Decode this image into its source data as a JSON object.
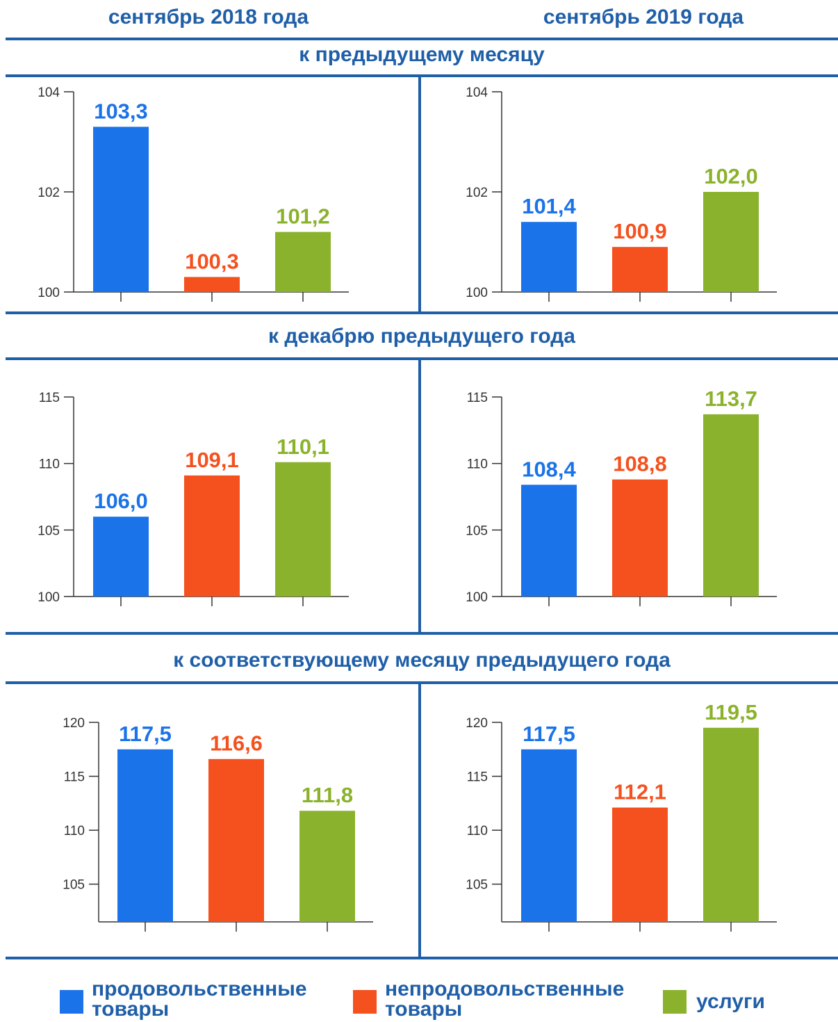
{
  "colors": {
    "food": "#1a73e8",
    "nonfood": "#f4511e",
    "services": "#8bb22c",
    "line": "#1f5fa8"
  },
  "columns": [
    "сентябрь 2018 года",
    "сентябрь 2019 года"
  ],
  "sections": [
    "к предыдущему месяцу",
    "к декабрю предыдущего года",
    "к соответствующему месяцу предыдущего года"
  ],
  "legend": {
    "food": [
      "продовольственные",
      "товары"
    ],
    "nonfood": [
      "непродовольственные",
      "товары"
    ],
    "services": [
      "услуги"
    ]
  },
  "chart_data": [
    {
      "type": "bar",
      "title": "сентябрь 2018 года — к предыдущему месяцу",
      "series": [
        {
          "values": [
            103.3,
            100.3,
            101.2
          ]
        }
      ],
      "labels": [
        "103,3",
        "100,3",
        "101,2"
      ],
      "ylim": [
        100,
        104
      ],
      "yticks": [
        100,
        102,
        104
      ]
    },
    {
      "type": "bar",
      "title": "сентябрь 2019 года — к предыдущему месяцу",
      "series": [
        {
          "values": [
            101.4,
            100.9,
            102.0
          ]
        }
      ],
      "labels": [
        "101,4",
        "100,9",
        "102,0"
      ],
      "ylim": [
        100,
        104
      ],
      "yticks": [
        100,
        102,
        104
      ]
    },
    {
      "type": "bar",
      "title": "сентябрь 2018 года — к декабрю предыдущего года",
      "series": [
        {
          "values": [
            106.0,
            109.1,
            110.1
          ]
        }
      ],
      "labels": [
        "106,0",
        "109,1",
        "110,1"
      ],
      "ylim": [
        100,
        115
      ],
      "yticks": [
        100,
        105,
        110,
        115
      ]
    },
    {
      "type": "bar",
      "title": "сентябрь 2019 года — к декабрю предыдущего года",
      "series": [
        {
          "values": [
            108.4,
            108.8,
            113.7
          ]
        }
      ],
      "labels": [
        "108,4",
        "108,8",
        "113,7"
      ],
      "ylim": [
        100,
        115
      ],
      "yticks": [
        100,
        105,
        110,
        115
      ]
    },
    {
      "type": "bar",
      "title": "сентябрь 2018 года — к соответствующему месяцу предыдущего года",
      "series": [
        {
          "values": [
            117.5,
            116.6,
            111.8
          ]
        }
      ],
      "labels": [
        "117,5",
        "116,6",
        "111,8"
      ],
      "ylim": [
        101.5,
        120
      ],
      "yticks": [
        105,
        110,
        115,
        120
      ]
    },
    {
      "type": "bar",
      "title": "сентябрь 2019 года — к соответствующему месяцу предыдущего года",
      "series": [
        {
          "values": [
            117.5,
            112.1,
            119.5
          ]
        }
      ],
      "labels": [
        "117,5",
        "112,1",
        "119,5"
      ],
      "ylim": [
        101.5,
        120
      ],
      "yticks": [
        105,
        110,
        115,
        120
      ]
    }
  ]
}
